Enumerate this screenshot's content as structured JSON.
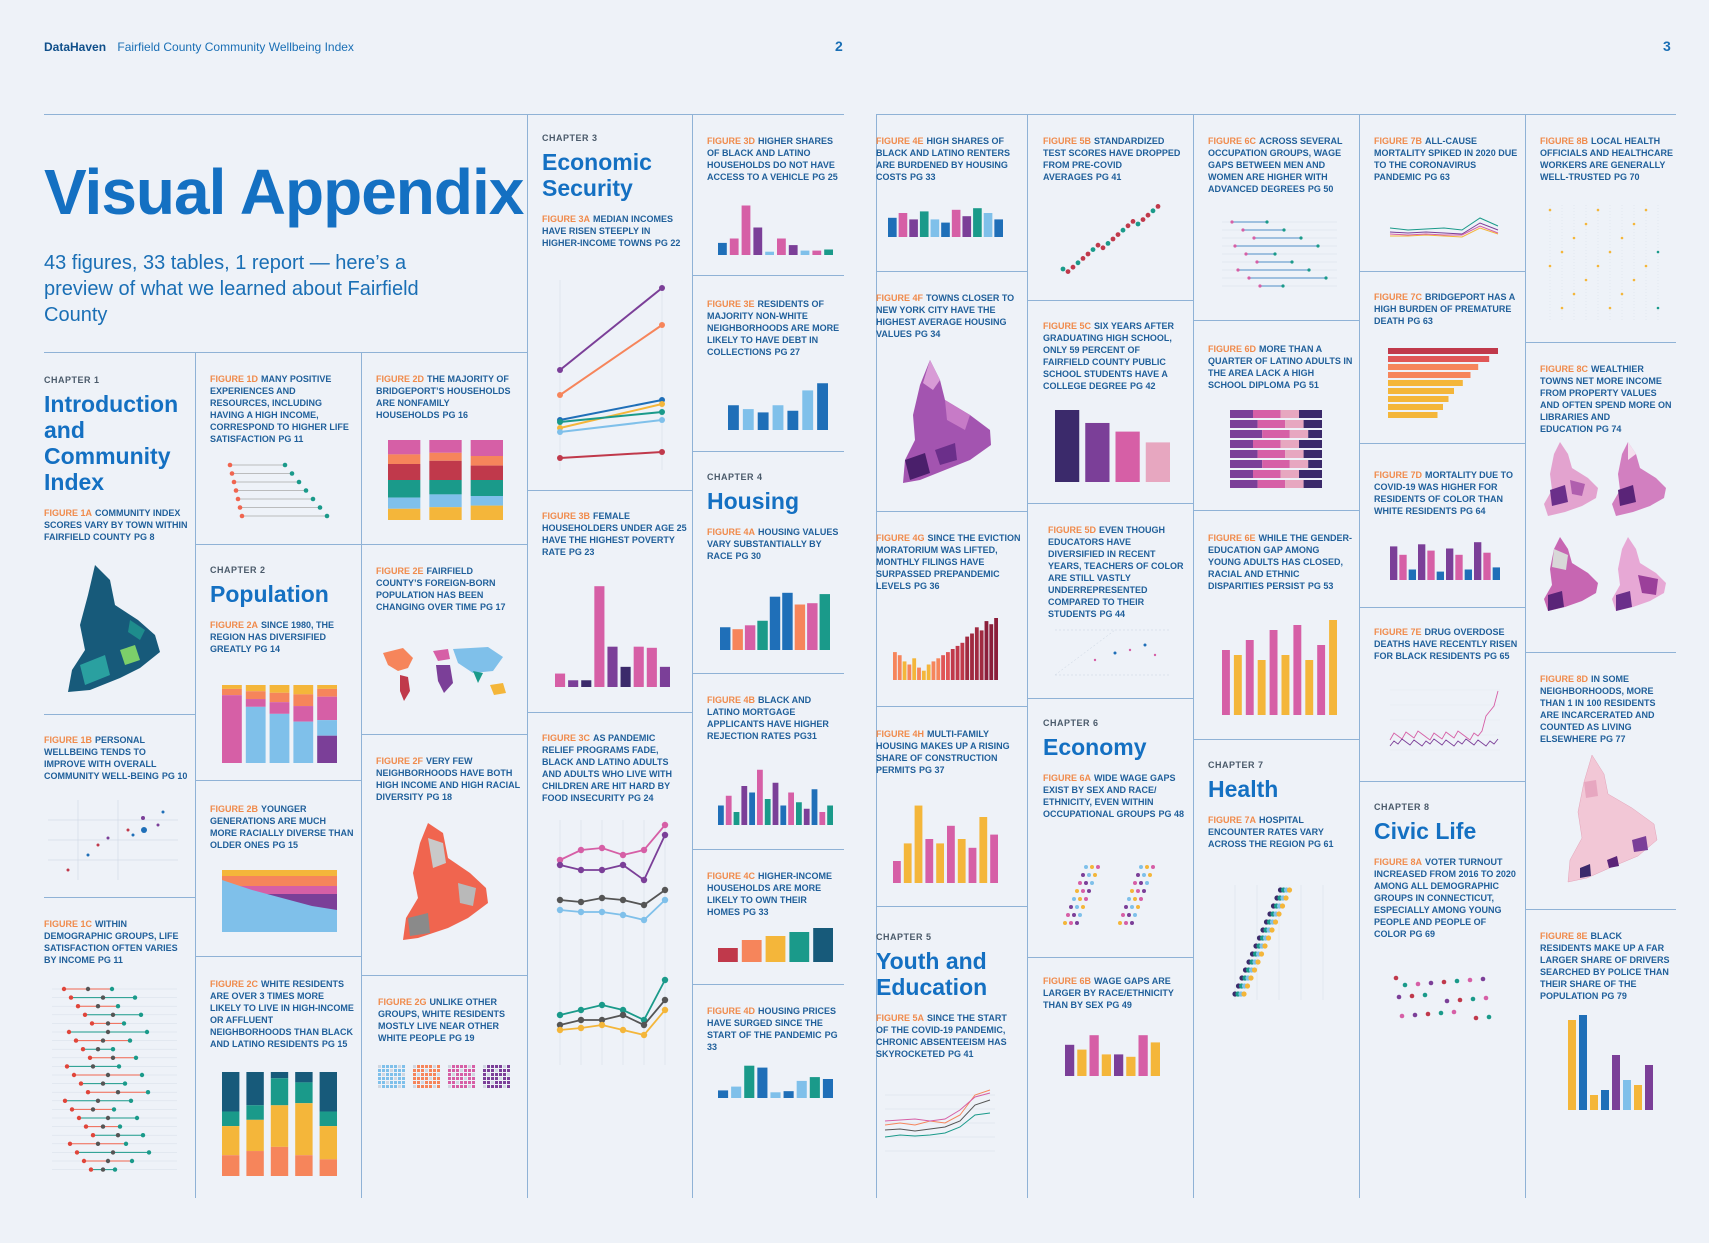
{
  "header": {
    "brand": "DataHaven",
    "title": "Fairfield County Community Wellbeing Index",
    "page_left": "2",
    "page_right": "3"
  },
  "hero": {
    "title": "Visual Appendix",
    "subtitle": "43 figures, 33 tables, 1 report — here’s a preview of what we learned about Fairfield County"
  },
  "chapters": {
    "c1": {
      "label": "CHAPTER 1",
      "title": "Introduction and Community Index"
    },
    "c2": {
      "label": "CHAPTER 2",
      "title": "Population"
    },
    "c3": {
      "label": "CHAPTER 3",
      "title": "Economic Security"
    },
    "c4": {
      "label": "CHAPTER 4",
      "title": "Housing"
    },
    "c5": {
      "label": "CHAPTER 5",
      "title": "Youth and Education"
    },
    "c6": {
      "label": "CHAPTER 6",
      "title": "Economy"
    },
    "c7": {
      "label": "CHAPTER 7",
      "title": "Health"
    },
    "c8": {
      "label": "CHAPTER 8",
      "title": "Civic Life"
    }
  },
  "figures": {
    "f1a": {
      "num": "FIGURE 1A",
      "text": "COMMUNITY INDEX SCORES VARY BY TOWN WITHIN FAIRFIELD COUNTY",
      "pg": "PG 8"
    },
    "f1b": {
      "num": "FIGURE 1B",
      "text": "PERSONAL WELLBEING TENDS TO IMPROVE WITH OVERALL COMMUNITY WELL-BEING",
      "pg": "PG 10"
    },
    "f1c": {
      "num": "FIGURE 1C",
      "text": "WITHIN DEMOGRAPHIC GROUPS, LIFE SATISFACTION OFTEN VARIES BY INCOME",
      "pg": "PG 11"
    },
    "f1d": {
      "num": "FIGURE 1D",
      "text": "MANY POSITIVE EXPERIENCES AND RESOURCES, INCLUDING HAVING A HIGH INCOME, CORRESPOND TO HIGHER LIFE SATISFACTION",
      "pg": "PG 11"
    },
    "f2a": {
      "num": "FIGURE 2A",
      "text": "SINCE 1980, THE REGION HAS DIVERSIFIED GREATLY",
      "pg": "PG 14"
    },
    "f2b": {
      "num": "FIGURE 2B",
      "text": "YOUNGER GENERATIONS ARE MUCH MORE RACIALLY DIVERSE THAN OLDER ONES",
      "pg": "PG 15"
    },
    "f2c": {
      "num": "FIGURE 2C",
      "text": "WHITE RESIDENTS ARE OVER 3 TIMES MORE LIKELY TO LIVE IN HIGH-INCOME OR AFFLUENT NEIGHBORHOODS THAN BLACK AND LATINO RESIDENTS",
      "pg": "PG 15"
    },
    "f2d": {
      "num": "FIGURE 2D",
      "text": "THE MAJORITY OF BRIDGEPORT’S HOUSEHOLDS ARE NONFAMILY HOUSEHOLDS",
      "pg": "PG 16"
    },
    "f2e": {
      "num": "FIGURE 2E",
      "text": "FAIRFIELD COUNTY’S FOREIGN-BORN POPULATION HAS BEEN CHANGING OVER TIME",
      "pg": "PG 17"
    },
    "f2f": {
      "num": "FIGURE 2F",
      "text": "VERY FEW NEIGHBORHOODS HAVE BOTH HIGH INCOME AND HIGH RACIAL DIVERSITY",
      "pg": "PG 18"
    },
    "f2g": {
      "num": "FIGURE 2G",
      "text": "UNLIKE OTHER GROUPS, WHITE RESIDENTS MOSTLY LIVE NEAR OTHER WHITE PEOPLE",
      "pg": "PG 19"
    },
    "f3a": {
      "num": "FIGURE 3A",
      "text": "MEDIAN INCOMES HAVE RISEN STEEPLY IN HIGHER-INCOME TOWNS",
      "pg": "PG 22"
    },
    "f3b": {
      "num": "FIGURE 3B",
      "text": "FEMALE HOUSEHOLDERS UNDER AGE 25 HAVE THE HIGHEST POVERTY RATE",
      "pg": "PG 23"
    },
    "f3c": {
      "num": "FIGURE 3C",
      "text": "AS PANDEMIC RELIEF PROGRAMS FADE, BLACK AND LATINO ADULTS AND ADULTS WHO LIVE WITH CHILDREN ARE HIT HARD BY FOOD INSECURITY",
      "pg": "PG 24"
    },
    "f3d": {
      "num": "FIGURE 3D",
      "text": "HIGHER SHARES OF BLACK AND LATINO HOUSEHOLDS DO NOT HAVE ACCESS TO A VEHICLE",
      "pg": "PG 25"
    },
    "f3e": {
      "num": "FIGURE 3E",
      "text": "RESIDENTS OF MAJORITY NON-WHITE NEIGHBORHOODS ARE MORE LIKELY TO HAVE DEBT IN COLLECTIONS",
      "pg": "PG 27"
    },
    "f4a": {
      "num": "FIGURE 4A",
      "text": "HOUSING VALUES VARY SUBSTANTIALLY BY RACE",
      "pg": "PG 30"
    },
    "f4b": {
      "num": "FIGURE 4B",
      "text": "BLACK AND LATINO MORTGAGE APPLICANTS HAVE HIGHER REJECTION RATES",
      "pg": "PG31"
    },
    "f4c": {
      "num": "FIGURE 4C",
      "text": "HIGHER-INCOME HOUSEHOLDS ARE MORE LIKELY TO OWN THEIR HOMES",
      "pg": "PG 33"
    },
    "f4d": {
      "num": "FIGURE 4D",
      "text": "HOUSING PRICES HAVE SURGED SINCE THE START OF THE PANDEMIC",
      "pg": "PG 33"
    },
    "f4e": {
      "num": "FIGURE 4E",
      "text": "HIGH SHARES OF BLACK AND LATINO RENTERS ARE BURDENED BY HOUSING COSTS",
      "pg": "PG 33"
    },
    "f4f": {
      "num": "FIGURE 4F",
      "text": "TOWNS CLOSER TO NEW YORK CITY HAVE THE HIGHEST AVERAGE HOUSING VALUES",
      "pg": "PG 34"
    },
    "f4g": {
      "num": "FIGURE 4G",
      "text": "SINCE THE EVICTION MORATORIUM WAS LIFTED, MONTHLY FILINGS HAVE SURPASSED PREPANDEMIC LEVELS",
      "pg": "PG 36"
    },
    "f4h": {
      "num": "FIGURE 4H",
      "text": "MULTI-FAMILY HOUSING MAKES UP A RISING SHARE OF CONSTRUCTION PERMITS",
      "pg": "PG 37"
    },
    "f5a": {
      "num": "FIGURE 5A",
      "text": "SINCE THE START OF THE COVID-19 PANDEMIC, CHRONIC ABSENTEEISM HAS SKYROCKETED",
      "pg": "PG 41"
    },
    "f5b": {
      "num": "FIGURE 5B",
      "text": "STANDARDIZED TEST SCORES HAVE DROPPED FROM PRE-COVID AVERAGES",
      "pg": "PG 41"
    },
    "f5c": {
      "num": "FIGURE 5C",
      "text": "SIX YEARS AFTER GRADUATING HIGH SCHOOL, ONLY 59 PERCENT OF FAIRFIELD COUNTY PUBLIC SCHOOL STUDENTS HAVE A COLLEGE DEGREE",
      "pg": "PG 42"
    },
    "f5d": {
      "num": "FIGURE 5D",
      "text": "EVEN THOUGH EDUCATORS HAVE DIVERSIFIED IN RECENT YEARS, TEACHERS OF COLOR ARE STILL VASTLY UNDERREPRESENTED COMPARED TO THEIR STUDENTS",
      "pg": "PG 44"
    },
    "f6a": {
      "num": "FIGURE 6A",
      "text": "WIDE WAGE GAPS EXIST BY SEX AND RACE/ ETHNICITY, EVEN WITHIN OCCUPATIONAL GROUPS",
      "pg": "PG 48"
    },
    "f6b": {
      "num": "FIGURE 6B",
      "text": "WAGE GAPS ARE LARGER BY RACE/ETHNICITY THAN BY SEX",
      "pg": "PG 49"
    },
    "f6c": {
      "num": "FIGURE 6C",
      "text": "ACROSS SEVERAL OCCUPATION GROUPS, WAGE GAPS BETWEEN MEN AND WOMEN ARE HIGHER WITH ADVANCED DEGREES",
      "pg": "PG 50"
    },
    "f6d": {
      "num": "FIGURE 6D",
      "text": "MORE THAN A QUARTER OF LATINO ADULTS IN THE AREA LACK A HIGH SCHOOL DIPLOMA",
      "pg": "PG 51"
    },
    "f6e": {
      "num": "FIGURE 6E",
      "text": "WHILE THE GENDER-EDUCATION GAP AMONG YOUNG ADULTS HAS CLOSED, RACIAL AND ETHNIC DISPARITIES PERSIST",
      "pg": "PG 53"
    },
    "f7a": {
      "num": "FIGURE 7A",
      "text": "HOSPITAL ENCOUNTER RATES VARY ACROSS THE REGION",
      "pg": "PG 61"
    },
    "f7b": {
      "num": "FIGURE 7B",
      "text": "ALL-CAUSE MORTALITY SPIKED IN 2020 DUE TO THE CORONAVIRUS PANDEMIC",
      "pg": "PG 63"
    },
    "f7c": {
      "num": "FIGURE 7C",
      "text": "BRIDGEPORT HAS A HIGH BURDEN OF PREMATURE DEATH",
      "pg": "PG 63"
    },
    "f7d": {
      "num": "FIGURE 7D",
      "text": "MORTALITY DUE TO COVID-19 WAS HIGHER FOR RESIDENTS OF COLOR THAN WHITE RESIDENTS",
      "pg": "PG 64"
    },
    "f7e": {
      "num": "FIGURE 7E",
      "text": "DRUG OVERDOSE DEATHS HAVE RECENTLY RISEN FOR BLACK RESIDENTS",
      "pg": "PG 65"
    },
    "f8a": {
      "num": "FIGURE 8A",
      "text": "VOTER TURNOUT INCREASED FROM 2016 TO 2020 AMONG ALL DEMOGRAPHIC GROUPS IN CONNECTICUT, ESPECIALLY AMONG YOUNG PEOPLE AND PEOPLE OF COLOR",
      "pg": "PG 69"
    },
    "f8b": {
      "num": "FIGURE 8B",
      "text": "LOCAL HEALTH OFFICIALS AND HEALTHCARE WORKERS ARE GENERALLY WELL-TRUSTED",
      "pg": "PG 70"
    },
    "f8c": {
      "num": "FIGURE 8C",
      "text": "WEALTHIER TOWNS NET MORE INCOME FROM PROPERTY VALUES AND OFTEN SPEND MORE ON LIBRARIES AND EDUCATION",
      "pg": "PG 74"
    },
    "f8d": {
      "num": "FIGURE 8D",
      "text": "IN SOME NEIGHBORHOODS, MORE THAN 1 IN 100 RESIDENTS ARE INCARCERATED AND COUNTED AS LIVING ELSEWHERE",
      "pg": "PG 77"
    },
    "f8e": {
      "num": "FIGURE 8E",
      "text": "BLACK RESIDENTS MAKE UP A FAR LARGER SHARE OF DRIVERS SEARCHED BY POLICE THAN THEIR SHARE OF THE POPULATION",
      "pg": "PG 79"
    }
  },
  "colors": {
    "pink": "#d65fa6",
    "purple": "#7b3f98",
    "blue": "#1f6fb8",
    "lightblue": "#7fc0ea",
    "teal": "#1a9a8a",
    "orange": "#f6855b",
    "yellow": "#f4b63a",
    "red": "#c0394b",
    "navy": "#3b2a6b"
  }
}
